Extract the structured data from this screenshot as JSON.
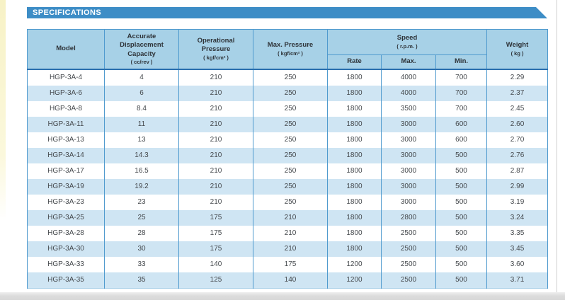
{
  "title": "SPECIFICATIONS",
  "colors": {
    "title_bar_blue": "#3d8dc6",
    "header_cell_blue": "#a7d1e7",
    "row_stripe_blue": "#cfe5f3",
    "grid_border_blue": "#4f9ace",
    "header_bottom_border": "#2b6fae",
    "text_dark": "#45494d"
  },
  "table": {
    "headers": {
      "model": "Model",
      "capacity": "Accurate Displacement Capacity",
      "capacity_unit": "( cc/rev )",
      "op_pressure": "Operational Pressure",
      "op_pressure_unit": "( kgf/cm² )",
      "max_pressure": "Max. Pressure",
      "max_pressure_unit": "( kgf/cm² )",
      "speed": "Speed",
      "speed_unit": "( r.p.m. )",
      "rate": "Rate",
      "max": "Max.",
      "min": "Min.",
      "weight": "Weight",
      "weight_unit": "( kg )"
    },
    "rows": [
      {
        "model": "HGP-3A-4",
        "capacity": "4",
        "op_pressure": "210",
        "max_pressure": "250",
        "rate": "1800",
        "max": "4000",
        "min": "700",
        "weight": "2.29"
      },
      {
        "model": "HGP-3A-6",
        "capacity": "6",
        "op_pressure": "210",
        "max_pressure": "250",
        "rate": "1800",
        "max": "4000",
        "min": "700",
        "weight": "2.37"
      },
      {
        "model": "HGP-3A-8",
        "capacity": "8.4",
        "op_pressure": "210",
        "max_pressure": "250",
        "rate": "1800",
        "max": "3500",
        "min": "700",
        "weight": "2.45"
      },
      {
        "model": "HGP-3A-11",
        "capacity": "11",
        "op_pressure": "210",
        "max_pressure": "250",
        "rate": "1800",
        "max": "3000",
        "min": "600",
        "weight": "2.60"
      },
      {
        "model": "HGP-3A-13",
        "capacity": "13",
        "op_pressure": "210",
        "max_pressure": "250",
        "rate": "1800",
        "max": "3000",
        "min": "600",
        "weight": "2.70"
      },
      {
        "model": "HGP-3A-14",
        "capacity": "14.3",
        "op_pressure": "210",
        "max_pressure": "250",
        "rate": "1800",
        "max": "3000",
        "min": "500",
        "weight": "2.76"
      },
      {
        "model": "HGP-3A-17",
        "capacity": "16.5",
        "op_pressure": "210",
        "max_pressure": "250",
        "rate": "1800",
        "max": "3000",
        "min": "500",
        "weight": "2.87"
      },
      {
        "model": "HGP-3A-19",
        "capacity": "19.2",
        "op_pressure": "210",
        "max_pressure": "250",
        "rate": "1800",
        "max": "3000",
        "min": "500",
        "weight": "2.99"
      },
      {
        "model": "HGP-3A-23",
        "capacity": "23",
        "op_pressure": "210",
        "max_pressure": "250",
        "rate": "1800",
        "max": "3000",
        "min": "500",
        "weight": "3.19"
      },
      {
        "model": "HGP-3A-25",
        "capacity": "25",
        "op_pressure": "175",
        "max_pressure": "210",
        "rate": "1800",
        "max": "2800",
        "min": "500",
        "weight": "3.24"
      },
      {
        "model": "HGP-3A-28",
        "capacity": "28",
        "op_pressure": "175",
        "max_pressure": "210",
        "rate": "1800",
        "max": "2500",
        "min": "500",
        "weight": "3.35"
      },
      {
        "model": "HGP-3A-30",
        "capacity": "30",
        "op_pressure": "175",
        "max_pressure": "210",
        "rate": "1800",
        "max": "2500",
        "min": "500",
        "weight": "3.45"
      },
      {
        "model": "HGP-3A-33",
        "capacity": "33",
        "op_pressure": "140",
        "max_pressure": "175",
        "rate": "1200",
        "max": "2500",
        "min": "500",
        "weight": "3.60"
      },
      {
        "model": "HGP-3A-35",
        "capacity": "35",
        "op_pressure": "125",
        "max_pressure": "140",
        "rate": "1200",
        "max": "2500",
        "min": "500",
        "weight": "3.71"
      }
    ]
  }
}
